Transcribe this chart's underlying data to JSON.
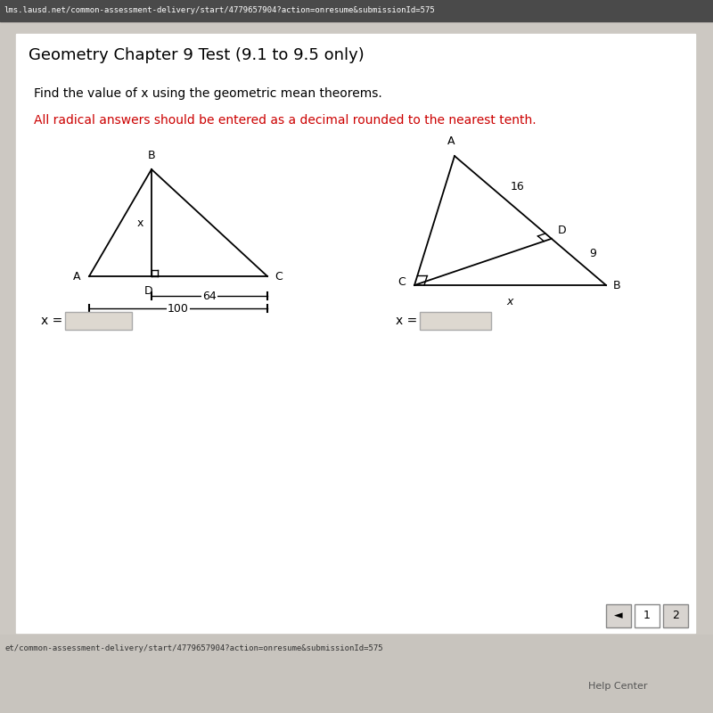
{
  "bg_color": "#ccc8c2",
  "page_bg": "#edeae6",
  "content_bg": "#ffffff",
  "url_top": "lms.lausd.net/common-assessment-delivery/start/4779657904?action=onresume&submissionId=575",
  "url_top_bg": "#4a4a4a",
  "url_bottom": "et/common-assessment-delivery/start/4779657904?action=onresume&submissionId=575",
  "url_bottom_bg": "#c0bcb6",
  "title": "Geometry Chapter 9 Test (9.1 to 9.5 only)",
  "title_fontsize": 13,
  "instruction": "Find the value of x using the geometric mean theorems.",
  "instruction_fontsize": 10,
  "red_instruction": "All radical answers should be entered as a decimal rounded to the nearest tenth.",
  "red_instruction_color": "#cc0000",
  "red_instruction_fontsize": 10,
  "diag1_label_B": "B",
  "diag1_label_A": "A",
  "diag1_label_D": "D",
  "diag1_label_C": "C",
  "diag1_label_x": "x",
  "diag1_dim64": "64",
  "diag1_dim100": "100",
  "diag2_label_A": "A",
  "diag2_label_C": "C",
  "diag2_label_D": "D",
  "diag2_label_B": "B",
  "diag2_label_x": "x",
  "diag2_label_16": "16",
  "diag2_label_9": "9",
  "x_eq_label": "x =",
  "input_box_color": "#ddd8d0",
  "input_box_border": "#aaaaaa",
  "lw": 1.3,
  "nav_bg": "#c8c4be",
  "nav_btn_bg": "#d8d4d0",
  "nav_btn1_bg": "#ffffff",
  "help_text": "Help Center",
  "help_color": "#555555"
}
